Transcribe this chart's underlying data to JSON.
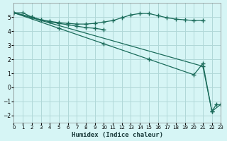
{
  "xlabel": "Humidex (Indice chaleur)",
  "ylabel": "",
  "bg_color": "#d6f5f5",
  "grid_color": "#b0d8d8",
  "line_color": "#1a6b5a",
  "xlim": [
    0,
    23
  ],
  "ylim": [
    -2.5,
    6
  ],
  "yticks": [
    -2,
    -1,
    0,
    1,
    2,
    3,
    4,
    5
  ],
  "xticks": [
    0,
    1,
    2,
    3,
    4,
    5,
    6,
    7,
    8,
    9,
    10,
    11,
    12,
    13,
    14,
    15,
    16,
    17,
    18,
    19,
    20,
    21,
    22,
    23
  ],
  "line1_x": [
    0,
    1,
    2,
    3,
    4,
    5,
    6,
    7,
    8,
    9,
    10,
    11,
    12,
    13,
    14,
    15,
    16,
    17,
    18,
    19,
    20,
    21
  ],
  "line1_y": [
    5.3,
    5.3,
    5.0,
    4.8,
    4.7,
    4.6,
    4.55,
    4.5,
    4.5,
    4.55,
    4.65,
    4.75,
    4.95,
    5.15,
    5.25,
    5.25,
    5.1,
    4.95,
    4.85,
    4.8,
    4.75,
    4.75
  ],
  "line2_x": [
    0,
    2,
    3,
    4,
    5,
    6,
    7,
    8,
    9,
    10
  ],
  "line2_y": [
    5.3,
    5.0,
    4.8,
    4.65,
    4.55,
    4.45,
    4.35,
    4.25,
    4.2,
    4.1
  ],
  "line3_x": [
    0,
    5,
    10,
    15,
    20,
    21,
    22,
    22.5
  ],
  "line3_y": [
    5.3,
    4.2,
    3.1,
    2.0,
    0.9,
    1.7,
    -1.7,
    -1.2
  ],
  "line4_x": [
    0,
    21,
    22,
    23
  ],
  "line4_y": [
    5.3,
    1.5,
    -1.7,
    -1.2
  ]
}
